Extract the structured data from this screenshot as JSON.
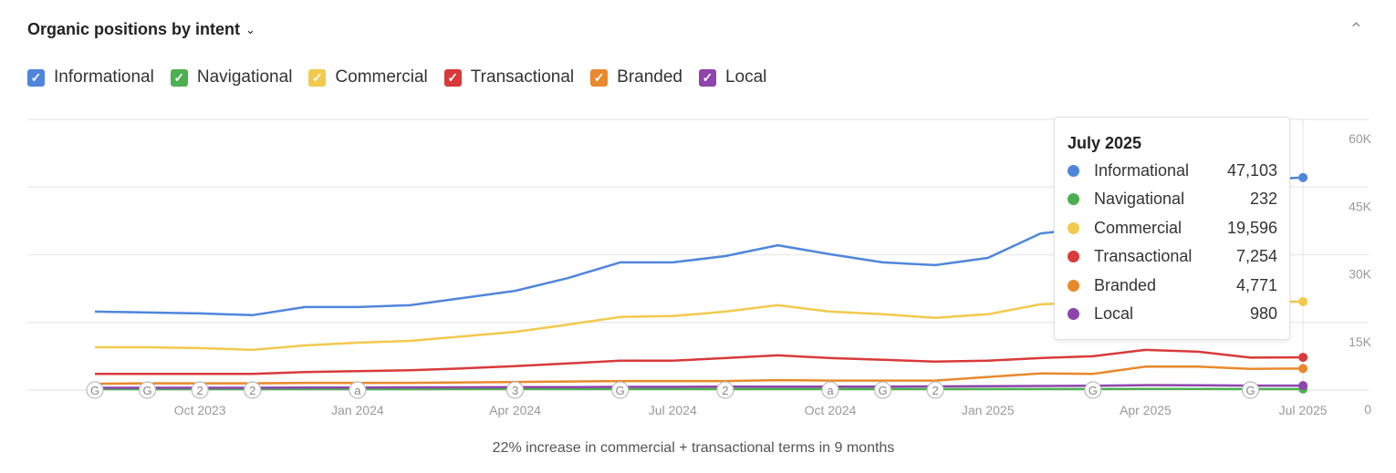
{
  "header": {
    "title": "Organic positions by intent",
    "title_chevron": "chevron-down-icon",
    "collapse_icon": "chevron-up-icon"
  },
  "legend": [
    {
      "label": "Informational",
      "color": "#4f86dc",
      "checked": true
    },
    {
      "label": "Navigational",
      "color": "#4caf50",
      "checked": true
    },
    {
      "label": "Commercial",
      "color": "#f2c94c",
      "checked": true
    },
    {
      "label": "Transactional",
      "color": "#d93a3a",
      "checked": true
    },
    {
      "label": "Branded",
      "color": "#e8892b",
      "checked": true
    },
    {
      "label": "Local",
      "color": "#8e44ad",
      "checked": true
    }
  ],
  "tooltip": {
    "title": "July 2025",
    "rows": [
      {
        "label": "Informational",
        "value": "47,103",
        "color": "#4f86dc"
      },
      {
        "label": "Navigational",
        "value": "232",
        "color": "#4caf50"
      },
      {
        "label": "Commercial",
        "value": "19,596",
        "color": "#f2c94c"
      },
      {
        "label": "Transactional",
        "value": "7,254",
        "color": "#d93a3a"
      },
      {
        "label": "Branded",
        "value": "4,771",
        "color": "#e8892b"
      },
      {
        "label": "Local",
        "value": "980",
        "color": "#8e44ad"
      }
    ]
  },
  "caption": "22% increase in commercial + transactional terms in 9 months",
  "chart_data": {
    "type": "line",
    "x": [
      "Aug 2023",
      "Sep 2023",
      "Oct 2023",
      "Nov 2023",
      "Dec 2023",
      "Jan 2024",
      "Feb 2024",
      "Mar 2024",
      "Apr 2024",
      "May 2024",
      "Jun 2024",
      "Jul 2024",
      "Aug 2024",
      "Sep 2024",
      "Oct 2024",
      "Nov 2024",
      "Dec 2024",
      "Jan 2025",
      "Feb 2025",
      "Mar 2025",
      "Apr 2025",
      "May 2025",
      "Jun 2025",
      "Jul 2025"
    ],
    "x_tick_labels": [
      "Oct 2023",
      "Jan 2024",
      "Apr 2024",
      "Jul 2024",
      "Oct 2024",
      "Jan 2025",
      "Apr 2025",
      "Jul 2025"
    ],
    "y_tick_labels": [
      "0",
      "15K",
      "30K",
      "45K",
      "60K"
    ],
    "ylim": [
      0,
      60000
    ],
    "y_axis_side": "right",
    "grid": true,
    "series": [
      {
        "name": "Informational",
        "color": "#4f86dc",
        "values": [
          17400,
          17200,
          17000,
          16600,
          18400,
          18400,
          18800,
          20400,
          22000,
          24800,
          28300,
          28300,
          29700,
          32100,
          30100,
          28300,
          27700,
          29300,
          34700,
          36000,
          40000,
          44000,
          46500,
          47103
        ]
      },
      {
        "name": "Navigational",
        "color": "#4caf50",
        "values": [
          200,
          200,
          200,
          200,
          210,
          210,
          210,
          215,
          215,
          220,
          220,
          220,
          225,
          225,
          225,
          225,
          225,
          230,
          230,
          230,
          235,
          235,
          232,
          232
        ]
      },
      {
        "name": "Commercial",
        "color": "#f2c94c",
        "values": [
          9500,
          9500,
          9300,
          8900,
          9900,
          10500,
          10900,
          11900,
          12900,
          14500,
          16200,
          16400,
          17400,
          18800,
          17400,
          16800,
          16000,
          16800,
          19000,
          19400,
          19800,
          19600,
          19600,
          19596
        ]
      },
      {
        "name": "Transactional",
        "color": "#d93a3a",
        "values": [
          3600,
          3600,
          3600,
          3600,
          4000,
          4200,
          4400,
          4800,
          5300,
          5900,
          6500,
          6500,
          7100,
          7700,
          7100,
          6700,
          6300,
          6500,
          7100,
          7500,
          8900,
          8500,
          7200,
          7254
        ]
      },
      {
        "name": "Branded",
        "color": "#e8892b",
        "values": [
          1400,
          1500,
          1500,
          1500,
          1600,
          1600,
          1600,
          1700,
          1800,
          1900,
          2000,
          2000,
          2000,
          2200,
          2100,
          2100,
          2100,
          2900,
          3700,
          3600,
          5200,
          5200,
          4700,
          4771
        ]
      },
      {
        "name": "Local",
        "color": "#8e44ad",
        "values": [
          500,
          500,
          500,
          500,
          550,
          550,
          600,
          600,
          650,
          650,
          700,
          700,
          750,
          750,
          750,
          750,
          800,
          850,
          900,
          950,
          1100,
          1050,
          980,
          980
        ]
      }
    ],
    "annotations": [
      {
        "x": "Aug 2023",
        "label": "G"
      },
      {
        "x": "Sep 2023",
        "label": "G"
      },
      {
        "x": "Oct 2023",
        "label": "2"
      },
      {
        "x": "Nov 2023",
        "label": "2"
      },
      {
        "x": "Jan 2024",
        "label": "a"
      },
      {
        "x": "Apr 2024",
        "label": "3"
      },
      {
        "x": "Jun 2024",
        "label": "G"
      },
      {
        "x": "Aug 2024",
        "label": "2"
      },
      {
        "x": "Oct 2024",
        "label": "a"
      },
      {
        "x": "Nov 2024",
        "label": "G"
      },
      {
        "x": "Dec 2024",
        "label": "2"
      },
      {
        "x": "Mar 2025",
        "label": "G"
      },
      {
        "x": "Jun 2025",
        "label": "G"
      }
    ],
    "highlighted_x": "Jul 2025"
  }
}
